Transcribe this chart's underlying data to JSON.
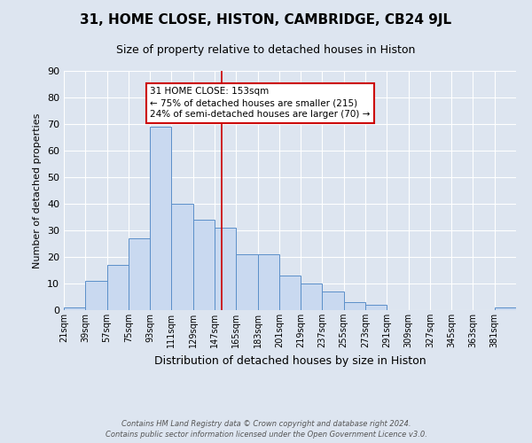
{
  "title": "31, HOME CLOSE, HISTON, CAMBRIDGE, CB24 9JL",
  "subtitle": "Size of property relative to detached houses in Histon",
  "xlabel": "Distribution of detached houses by size in Histon",
  "ylabel": "Number of detached properties",
  "bin_labels": [
    "21sqm",
    "39sqm",
    "57sqm",
    "75sqm",
    "93sqm",
    "111sqm",
    "129sqm",
    "147sqm",
    "165sqm",
    "183sqm",
    "201sqm",
    "219sqm",
    "237sqm",
    "255sqm",
    "273sqm",
    "291sqm",
    "309sqm",
    "327sqm",
    "345sqm",
    "363sqm",
    "381sqm"
  ],
  "bar_heights": [
    1,
    11,
    17,
    27,
    69,
    40,
    34,
    31,
    21,
    21,
    13,
    10,
    7,
    3,
    2,
    0,
    0,
    0,
    0,
    0,
    1
  ],
  "bar_color": "#c9d9f0",
  "bar_edge_color": "#5b8fc9",
  "bin_edges": [
    21,
    39,
    57,
    75,
    93,
    111,
    129,
    147,
    165,
    183,
    201,
    219,
    237,
    255,
    273,
    291,
    309,
    327,
    345,
    363,
    381,
    399
  ],
  "vline_x": 153,
  "vline_color": "#cc0000",
  "ylim": [
    0,
    90
  ],
  "yticks": [
    0,
    10,
    20,
    30,
    40,
    50,
    60,
    70,
    80,
    90
  ],
  "annotation_title": "31 HOME CLOSE: 153sqm",
  "annotation_line1": "← 75% of detached houses are smaller (215)",
  "annotation_line2": "24% of semi-detached houses are larger (70) →",
  "annotation_box_color": "#ffffff",
  "annotation_box_edge_color": "#cc0000",
  "footer_line1": "Contains HM Land Registry data © Crown copyright and database right 2024.",
  "footer_line2": "Contains public sector information licensed under the Open Government Licence v3.0.",
  "background_color": "#dde5f0",
  "plot_background_color": "#dde5f0",
  "title_fontsize": 11,
  "subtitle_fontsize": 9,
  "ylabel_fontsize": 8,
  "xlabel_fontsize": 9,
  "tick_fontsize": 7,
  "ytick_fontsize": 8
}
